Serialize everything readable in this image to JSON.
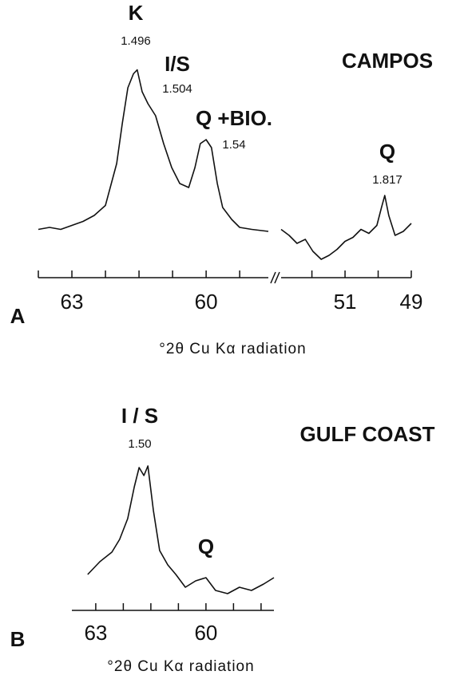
{
  "chart_data": [
    {
      "type": "line",
      "panel": "A",
      "title": "CAMPOS",
      "xlabel": "°2θ Cu Kα radiation",
      "ylim": [
        0,
        100
      ],
      "color": "#111111",
      "segments": [
        {
          "xlim": [
            63.75,
            58.61
          ],
          "xticks": [
            63,
            60
          ],
          "minor_xticks": [
            63.75,
            62.25,
            61.5,
            60.75,
            59.25
          ],
          "x": [
            63.75,
            63.5,
            63.25,
            63.0,
            62.75,
            62.5,
            62.25,
            62.0,
            61.875,
            61.75,
            61.625,
            61.54,
            61.43,
            61.3,
            61.13,
            60.95,
            60.77,
            60.59,
            60.39,
            60.25,
            60.13,
            60.0,
            59.88,
            59.75,
            59.63,
            59.43,
            59.25,
            58.98,
            58.61
          ],
          "values": [
            17,
            18,
            17,
            19,
            21,
            24,
            29,
            50,
            70,
            88,
            95,
            97,
            86,
            80,
            74,
            60,
            48,
            40,
            38,
            48,
            60,
            62,
            58,
            40,
            28,
            22,
            18,
            17,
            16
          ]
        },
        {
          "xlim": [
            52.93,
            49
          ],
          "xticks": [
            51,
            49
          ],
          "minor_xticks": [
            52,
            50
          ],
          "x": [
            52.93,
            52.69,
            52.45,
            52.2,
            51.97,
            51.72,
            51.48,
            51.24,
            51.0,
            50.76,
            50.52,
            50.28,
            50.04,
            49.9,
            49.8,
            49.68,
            49.49,
            49.24,
            49.0
          ],
          "values": [
            17,
            14,
            10,
            12,
            6,
            2,
            4,
            7,
            11,
            13,
            17,
            15,
            19,
            28,
            34,
            24,
            14,
            16,
            20
          ]
        }
      ],
      "annotations": [
        {
          "text": "K",
          "d": 1.496
        },
        {
          "text": "I/S",
          "d": 1.504
        },
        {
          "text": "Q +BIO.",
          "d": 1.54
        },
        {
          "text": "Q",
          "d": 1.817
        }
      ]
    },
    {
      "type": "line",
      "panel": "B",
      "title": "GULF COAST",
      "xlabel": "°2θ Cu Kα radiation",
      "ylim": [
        0,
        100
      ],
      "color": "#111111",
      "segments": [
        {
          "xlim": [
            63.65,
            58.15
          ],
          "xticks": [
            63,
            60
          ],
          "minor_xticks": [
            62.25,
            61.5,
            60.75,
            59.25,
            58.5
          ],
          "x": [
            63.22,
            62.89,
            62.56,
            62.35,
            62.13,
            61.95,
            61.82,
            61.69,
            61.58,
            61.43,
            61.26,
            61.04,
            60.82,
            60.56,
            60.28,
            60.0,
            59.74,
            59.41,
            59.09,
            58.76,
            58.43,
            58.15
          ],
          "values": [
            30,
            38,
            44,
            52,
            65,
            85,
            97,
            92,
            98,
            70,
            45,
            36,
            30,
            22,
            26,
            28,
            20,
            18,
            22,
            20,
            24,
            28
          ]
        }
      ],
      "annotations": [
        {
          "text": "I / S",
          "d": {
            "value": 1.5,
            "label": "1.50"
          }
        },
        {
          "text": "Q"
        }
      ]
    }
  ]
}
